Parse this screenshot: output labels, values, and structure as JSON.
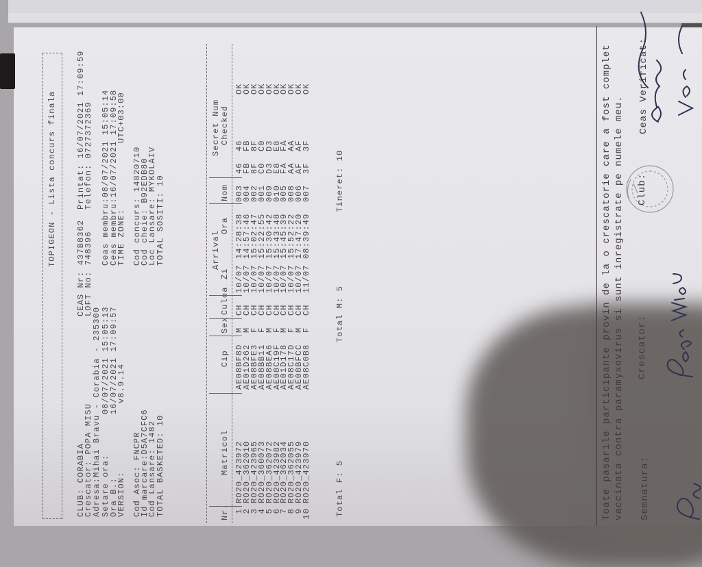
{
  "document": {
    "title": "TOPIGEON - Lista concurs finala",
    "header": {
      "club": "CLUB: CORABIA",
      "crescator": "Crescator: POPA MISU",
      "adresa": "Adresa:Mihai Bravu - Corabia - 235300",
      "ceas_nr": "CEAS Nr: 437B8362",
      "loft_no": "LOFT No: 748396",
      "printat": "Printat: 16/07/2021 17:09:59",
      "telefon": "Telefon: 0727372369",
      "setare_label": "Setare ora:",
      "setare_value": "08/07/2021 15:05:13",
      "ora_b_label": "Ora B.:",
      "ora_b_value": "16/07/2021 17:09:57",
      "version_label": "VERSION:",
      "version_value": "v8.9.14",
      "ceas_membru_1": "Ceas membru:08/07/2021 15:05:14",
      "ceas_membru_2": "Ceas membru:16/07/2021 17:09:58",
      "time_zone_label": "TIME ZONE:",
      "time_zone_value": "UTC+03:00",
      "cod_asoc": "Cod Asoc: FNCPR",
      "id_marcare": "Id marcare:D5A7CFC6",
      "cod_lansare": "Cod Lansare: 1482",
      "total_basketed": "TOTAL BASKETED: 10",
      "cod_concurs": "Cod concurs: 14820710",
      "cod_cheie": "Cod cheie: B92EDB80",
      "loc_lansare": "Loc Lansare: MYKOLAIV",
      "total_sositi": "TOTAL SOSITI: 10"
    },
    "table": {
      "headers": {
        "nr": "Nr.",
        "matricol": "Matricol",
        "cip": "Cip",
        "sex": "Sex",
        "culoa": "Culoa",
        "arrival": "Arrival",
        "zi": "Zi",
        "ora": "Ora",
        "nom": "Nom",
        "secret_num": "Secret Num",
        "checked": "Checked"
      },
      "rows": [
        {
          "nr": "1",
          "matricol": "RO20_423972",
          "cip": "AE08BF8D",
          "sex": "M",
          "culoa": "CH",
          "zi": "10/07",
          "ora": "14:28:38",
          "nom": "003",
          "s1": "46",
          "s2": "46",
          "ok": "OK"
        },
        {
          "nr": "2",
          "matricol": "RO20_362010",
          "cip": "AE01D262",
          "sex": "M",
          "culoa": "CH",
          "zi": "10/07",
          "ora": "14:57:46",
          "nom": "004",
          "s1": "FB",
          "s2": "FB",
          "ok": "OK"
        },
        {
          "nr": "3",
          "matricol": "RO20_423965",
          "cip": "AE08BFE3",
          "sex": "F",
          "culoa": "CH",
          "zi": "10/07",
          "ora": "15:02:47",
          "nom": "002",
          "s1": "8F",
          "s2": "8F",
          "ok": "OK"
        },
        {
          "nr": "4",
          "matricol": "RO20_360073",
          "cip": "AE08BB11",
          "sex": "F",
          "culoa": "CH",
          "zi": "10/07",
          "ora": "15:22:55",
          "nom": "001",
          "s1": "C0",
          "s2": "C0",
          "ok": "OK"
        },
        {
          "nr": "5",
          "matricol": "RO20_362072",
          "cip": "AE08BEA6",
          "sex": "M",
          "culoa": "CH",
          "zi": "10/07",
          "ora": "15:30:42",
          "nom": "009",
          "s1": "D3",
          "s2": "D3",
          "ok": "OK"
        },
        {
          "nr": "6",
          "matricol": "RO20_423982",
          "cip": "AE08C19F",
          "sex": "F",
          "culoa": "CH",
          "zi": "10/07",
          "ora": "15:43:48",
          "nom": "010",
          "s1": "E8",
          "s2": "E8",
          "ok": "OK"
        },
        {
          "nr": "7",
          "matricol": "RO20_362034",
          "cip": "AE01D178",
          "sex": "M",
          "culoa": "CH",
          "zi": "10/07",
          "ora": "15:45:39",
          "nom": "005",
          "s1": "FA",
          "s2": "FA",
          "ok": "OK"
        },
        {
          "nr": "8",
          "matricol": "RO20_362055",
          "cip": "AE08C17D",
          "sex": "F",
          "culoa": "CH",
          "zi": "10/07",
          "ora": "15:52:22",
          "nom": "008",
          "s1": "AA",
          "s2": "AA",
          "ok": "OK"
        },
        {
          "nr": "9",
          "matricol": "RO20_423979",
          "cip": "AE08BFCC",
          "sex": "M",
          "culoa": "CH",
          "zi": "10/07",
          "ora": "17:47:20",
          "nom": "006",
          "s1": "AF",
          "s2": "AF",
          "ok": "OK"
        },
        {
          "nr": "10",
          "matricol": "RO20_423970",
          "cip": "AE08C0B8",
          "sex": "F",
          "culoa": "CH",
          "zi": "11/07",
          "ora": "08:39:49",
          "nom": "007",
          "s1": "3F",
          "s2": "3F",
          "ok": "OK"
        }
      ]
    },
    "totals": {
      "f": "Total F: 5",
      "m": "Total M: 5",
      "tineret": "Tineret: 10"
    },
    "footer": {
      "statement_line1": "Toate pasarile participante provin de la o crescatorie care a fost complet",
      "statement_line2": "vaccinata contra paramyxovirus si sunt inregistrate pe numele meu.",
      "semnatura": "Semnatura:",
      "crescator": "Crescator:",
      "club": "Club:",
      "ceas_verificat": "Ceas Verificat:",
      "stamp_text": "CLUB CORABIA",
      "ink_color": "#2e3450"
    }
  }
}
